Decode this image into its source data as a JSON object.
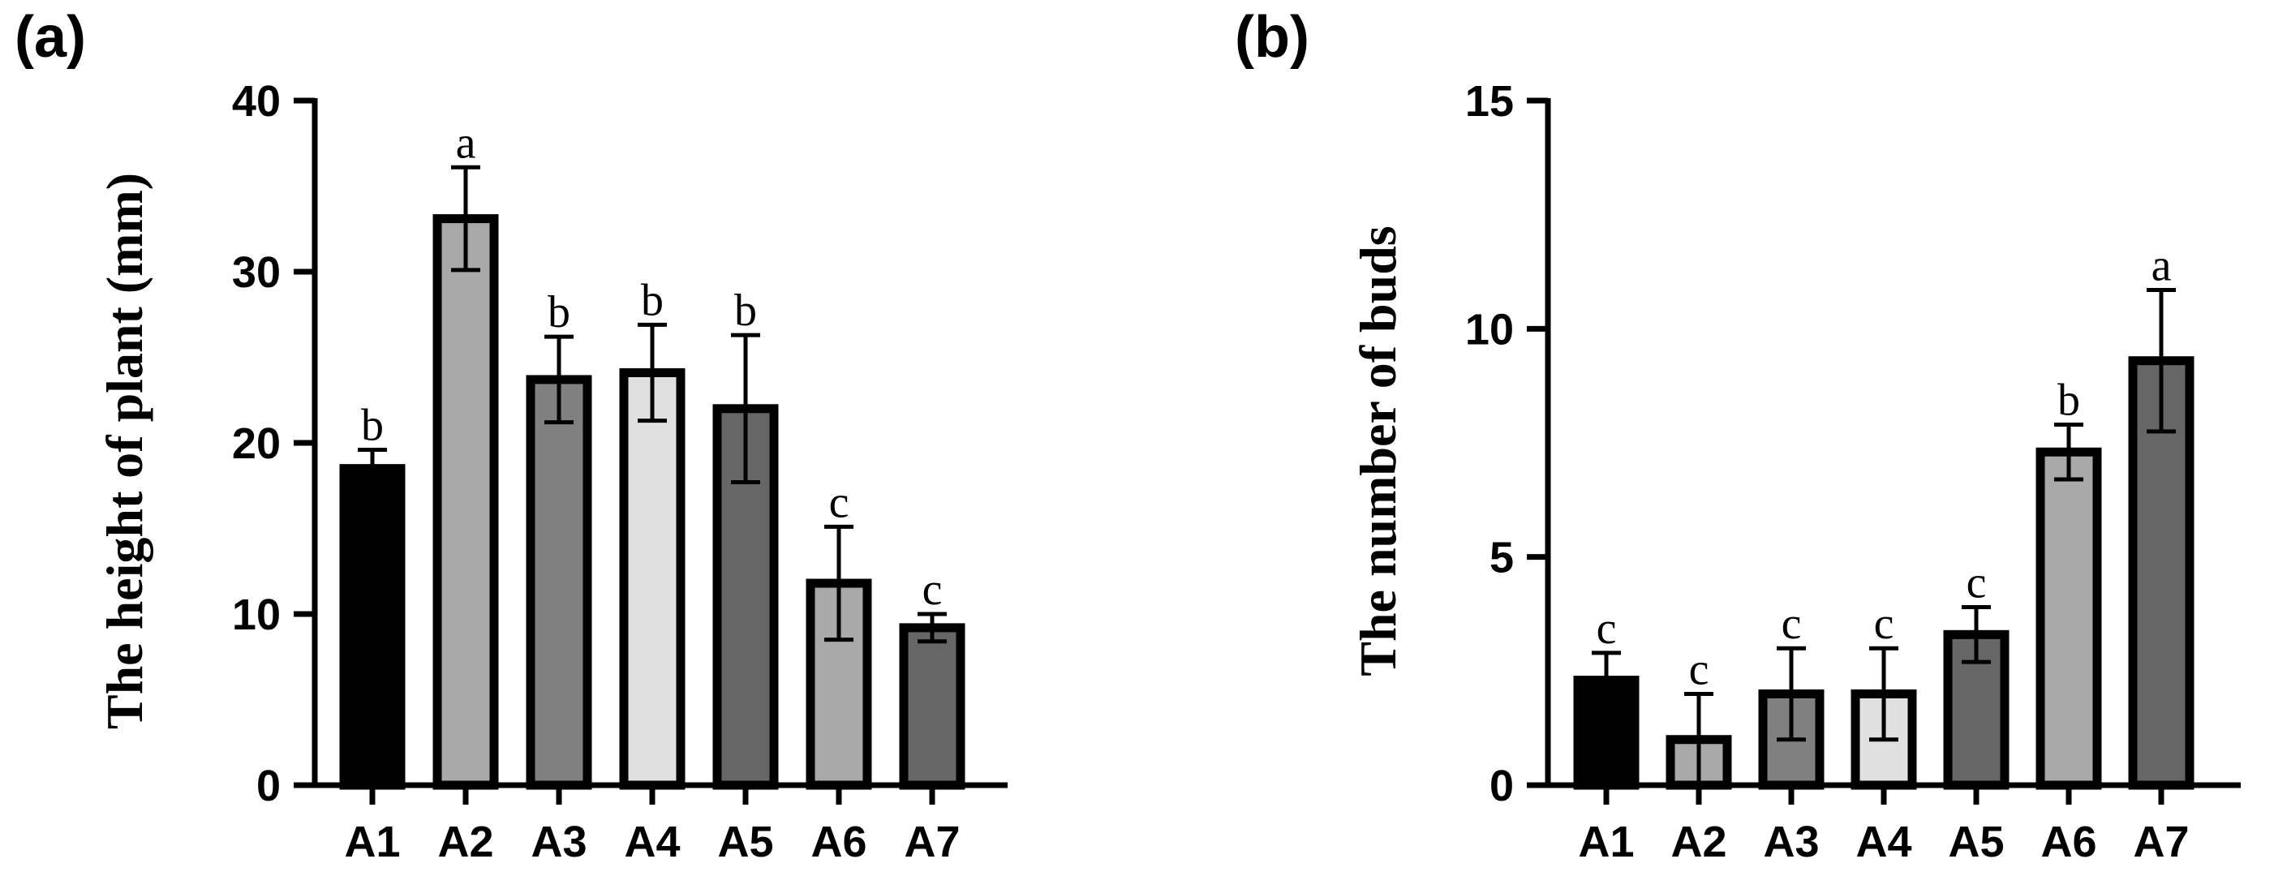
{
  "chart_data": [
    {
      "type": "bar",
      "panel_label": "(a)",
      "ylabel": "The height of plant (mm)",
      "xlabel": "",
      "ylim": [
        0,
        40
      ],
      "yticks": [
        0,
        10,
        20,
        30,
        40
      ],
      "categories": [
        "A1",
        "A2",
        "A3",
        "A4",
        "A5",
        "A6",
        "A7"
      ],
      "values": [
        18.5,
        33.1,
        23.7,
        24.1,
        22.0,
        11.8,
        9.2
      ],
      "errors": [
        1.1,
        3.0,
        2.5,
        2.8,
        4.3,
        3.3,
        0.8
      ],
      "letters": [
        "b",
        "a",
        "b",
        "b",
        "b",
        "c",
        "c"
      ],
      "bar_colors": [
        "#000000",
        "#a8a8a8",
        "#808080",
        "#e0e0e0",
        "#666666",
        "#a8a8a8",
        "#666666"
      ],
      "grid": false
    },
    {
      "type": "bar",
      "panel_label": "(b)",
      "ylabel": "The number of buds",
      "xlabel": "",
      "ylim": [
        0,
        15
      ],
      "yticks": [
        0,
        5,
        10,
        15
      ],
      "categories": [
        "A1",
        "A2",
        "A3",
        "A4",
        "A5",
        "A6",
        "A7"
      ],
      "values": [
        2.3,
        1.0,
        2.0,
        2.0,
        3.3,
        7.3,
        9.3
      ],
      "errors": [
        0.6,
        1.0,
        1.0,
        1.0,
        0.6,
        0.6,
        1.55
      ],
      "letters": [
        "c",
        "c",
        "c",
        "c",
        "c",
        "b",
        "a"
      ],
      "bar_colors": [
        "#000000",
        "#a8a8a8",
        "#808080",
        "#e0e0e0",
        "#666666",
        "#a8a8a8",
        "#666666"
      ],
      "grid": false
    }
  ]
}
